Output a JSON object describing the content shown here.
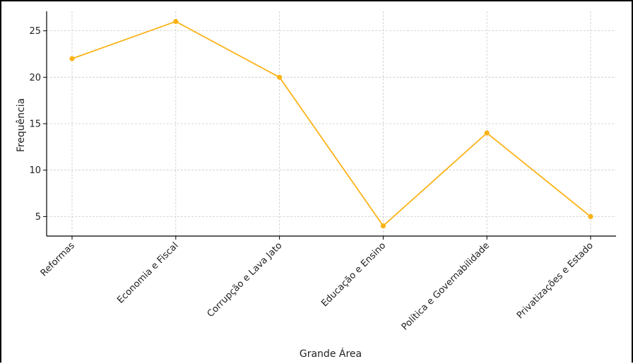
{
  "chart_data": {
    "type": "line",
    "title": "",
    "xlabel": "Grande Área",
    "ylabel": "Frequência",
    "categories": [
      "Reformas",
      "Economia e Fiscal",
      "Corrupção e Lava Jato",
      "Educação e Ensino",
      "Política e Governabilidade",
      "Privatizações e Estado"
    ],
    "series": [
      {
        "values": [
          22,
          26,
          20,
          4,
          14,
          5
        ]
      }
    ],
    "yticks": [
      5,
      10,
      15,
      20,
      25
    ],
    "ylim": [
      2.9,
      27.1
    ],
    "grid": true,
    "line_color": "#FBB216",
    "grid_color": "#CCCCCC"
  }
}
